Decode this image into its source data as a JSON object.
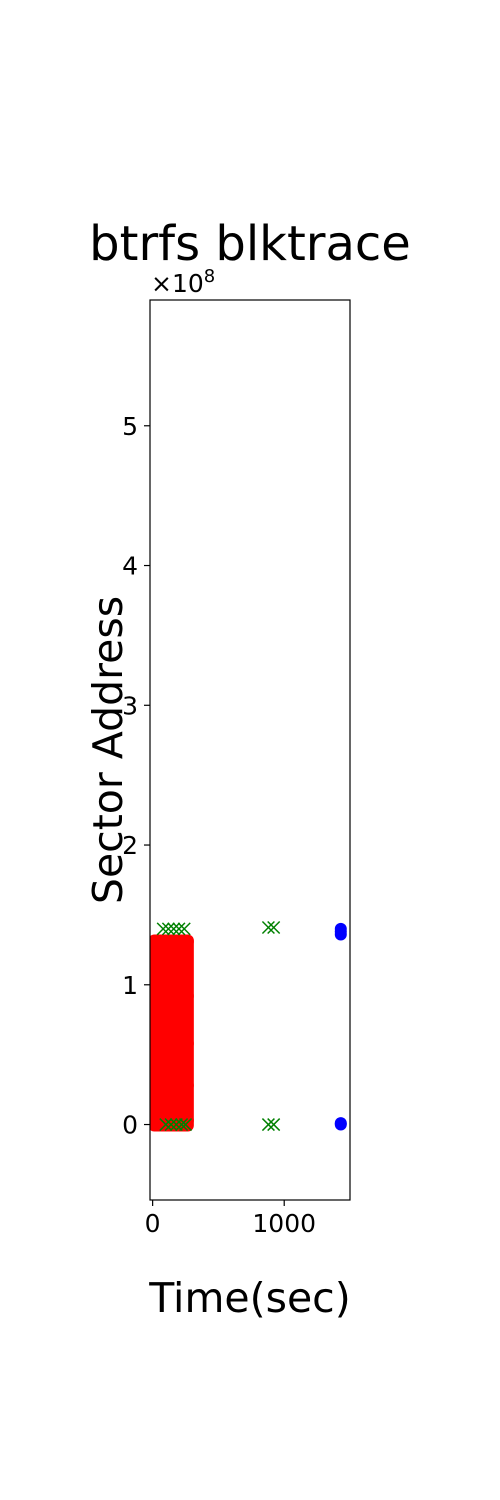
{
  "chart_data": {
    "type": "scatter",
    "title": "btrfs blktrace",
    "xlabel": "Time(sec)",
    "ylabel": "Sector Address",
    "xlim": [
      -20,
      1500
    ],
    "ylim": [
      -54000000,
      590000000
    ],
    "xticks": [
      0,
      1000
    ],
    "xtick_labels": [
      "0",
      "1000"
    ],
    "yticks": [
      0,
      100000000,
      200000000,
      300000000,
      400000000,
      500000000
    ],
    "ytick_labels": [
      "0",
      "1",
      "2",
      "3",
      "4",
      "5"
    ],
    "y_offset_label": "×10",
    "y_offset_exponent": "8",
    "grid": false,
    "series": [
      {
        "color": "#ff0000",
        "marker": "circle",
        "points": [
          [
            20,
            1000000
          ],
          [
            20,
            30000000
          ],
          [
            20,
            60000000
          ],
          [
            20,
            90000000
          ],
          [
            20,
            130000000
          ],
          [
            60,
            5000000
          ],
          [
            60,
            40000000
          ],
          [
            60,
            80000000
          ],
          [
            60,
            110000000
          ],
          [
            60,
            131000000
          ],
          [
            100,
            0
          ],
          [
            100,
            25000000
          ],
          [
            100,
            55000000
          ],
          [
            100,
            95000000
          ],
          [
            100,
            129000000
          ],
          [
            140,
            10000000
          ],
          [
            140,
            45000000
          ],
          [
            140,
            70000000
          ],
          [
            140,
            100000000
          ],
          [
            140,
            131000000
          ],
          [
            180,
            2000000
          ],
          [
            180,
            20000000
          ],
          [
            180,
            50000000
          ],
          [
            180,
            85000000
          ],
          [
            180,
            120000000
          ],
          [
            220,
            0
          ],
          [
            220,
            35000000
          ],
          [
            220,
            65000000
          ],
          [
            220,
            105000000
          ],
          [
            220,
            130000000
          ],
          [
            260,
            3000000
          ],
          [
            260,
            28000000
          ],
          [
            260,
            58000000
          ],
          [
            260,
            92000000
          ],
          [
            260,
            131000000
          ]
        ]
      },
      {
        "color": "#008000",
        "marker": "x",
        "points": [
          [
            80,
            140000000
          ],
          [
            120,
            140000000
          ],
          [
            160,
            140000000
          ],
          [
            200,
            140000000
          ],
          [
            240,
            140000000
          ],
          [
            100,
            0
          ],
          [
            140,
            0
          ],
          [
            180,
            0
          ],
          [
            220,
            0
          ],
          [
            250,
            0
          ],
          [
            880,
            141000000
          ],
          [
            920,
            141000000
          ],
          [
            880,
            0
          ],
          [
            920,
            0
          ]
        ]
      },
      {
        "color": "#0000ff",
        "marker": "circle",
        "points": [
          [
            1430,
            140000000
          ],
          [
            1430,
            138000000
          ],
          [
            1430,
            136000000
          ],
          [
            1430,
            1000000
          ],
          [
            1430,
            0
          ]
        ]
      }
    ]
  }
}
